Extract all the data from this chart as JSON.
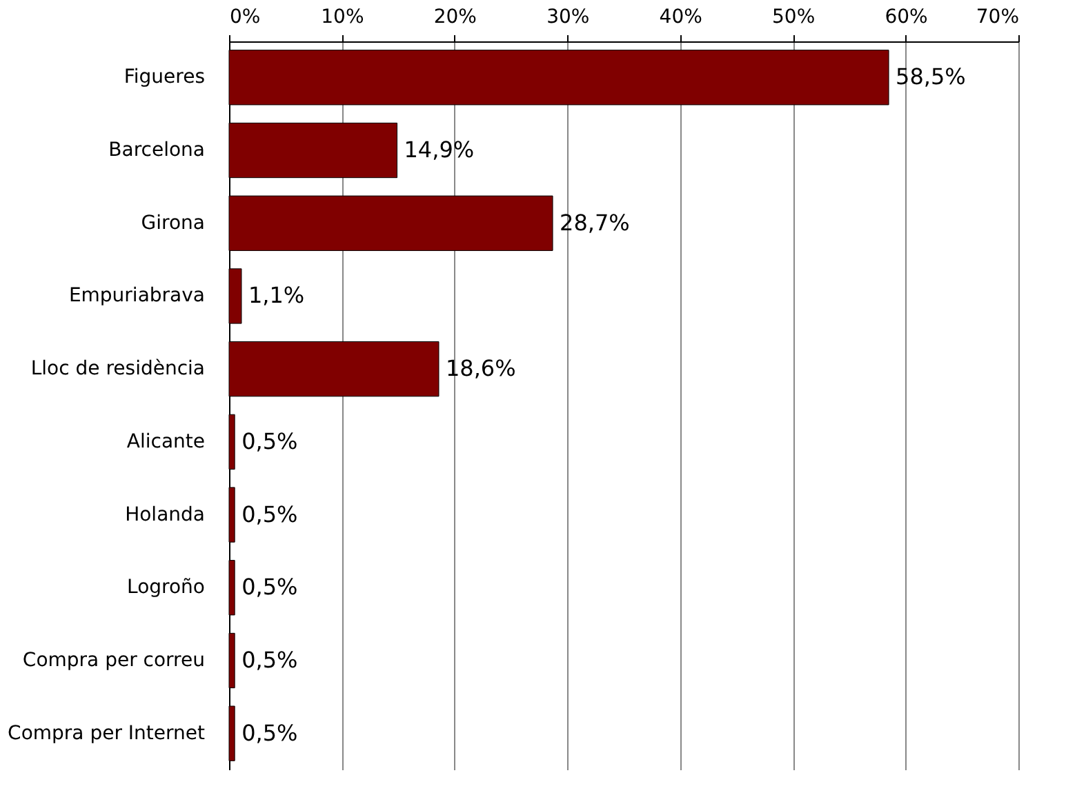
{
  "chart_data": {
    "type": "bar",
    "orientation": "horizontal",
    "categories": [
      "Figueres",
      "Barcelona",
      "Girona",
      "Empuriabrava",
      "Lloc de residència",
      "Alicante",
      "Holanda",
      "Logroño",
      "Compra per correu",
      "Compra per Internet"
    ],
    "values": [
      58.5,
      14.9,
      28.7,
      1.1,
      18.6,
      0.5,
      0.5,
      0.5,
      0.5,
      0.5
    ],
    "value_labels": [
      "58,5%",
      "14,9%",
      "28,7%",
      "1,1%",
      "18,6%",
      "0,5%",
      "0,5%",
      "0,5%",
      "0,5%",
      "0,5%"
    ],
    "color": "#800000",
    "xlim": [
      0,
      70
    ],
    "xticks": [
      {
        "value": 0,
        "label": "0%"
      },
      {
        "value": 10,
        "label": "10%"
      },
      {
        "value": 20,
        "label": "20%"
      },
      {
        "value": 30,
        "label": "30%"
      },
      {
        "value": 40,
        "label": "40%"
      },
      {
        "value": 50,
        "label": "50%"
      },
      {
        "value": 60,
        "label": "60%"
      },
      {
        "value": 70,
        "label": "70%"
      }
    ],
    "grid": "x"
  }
}
